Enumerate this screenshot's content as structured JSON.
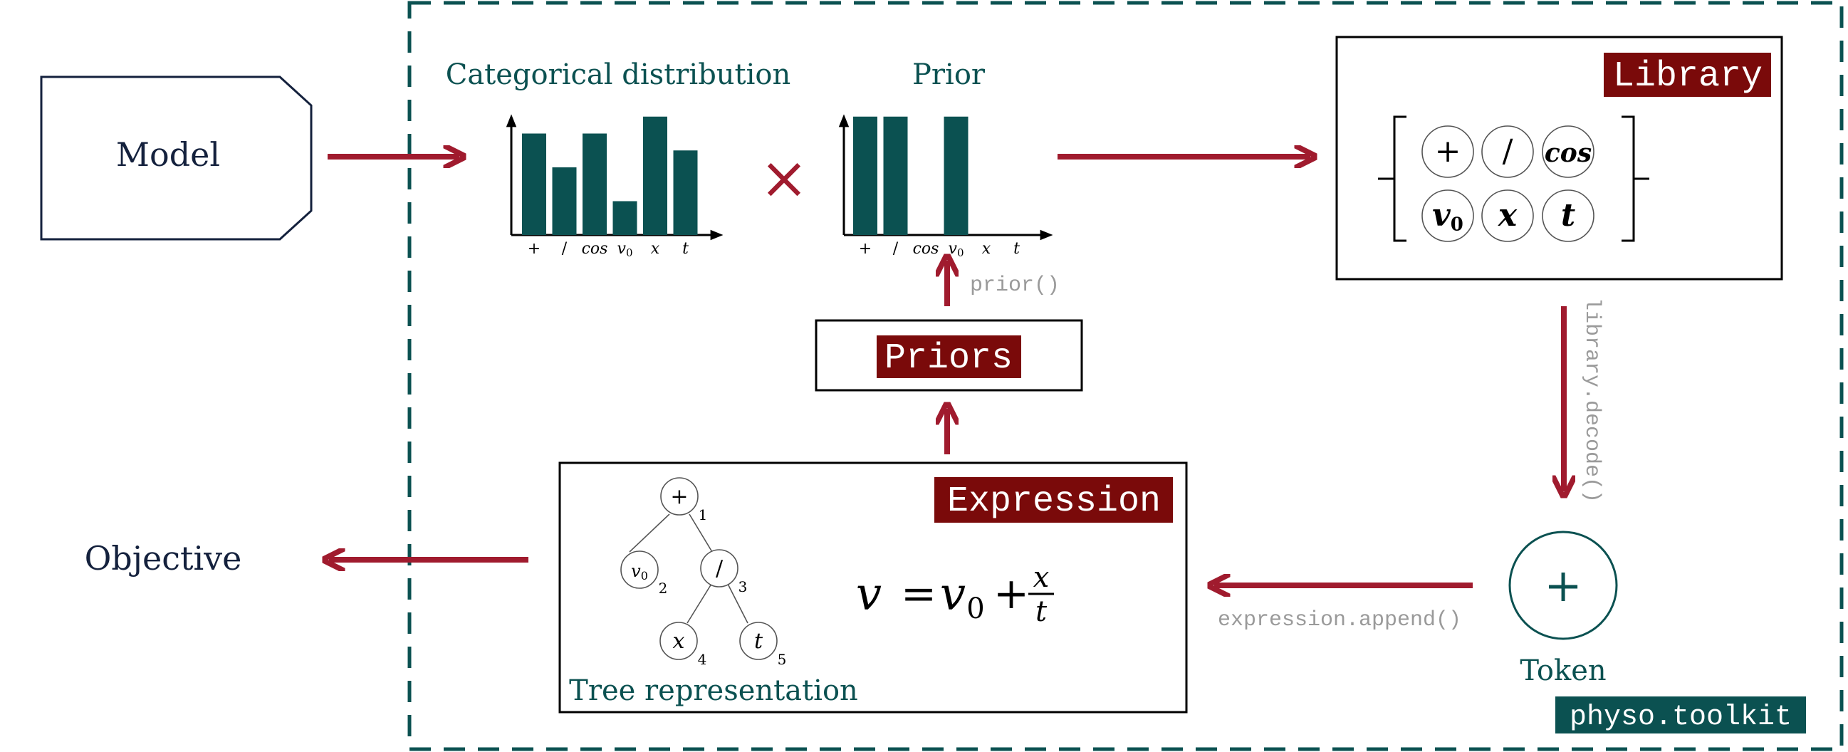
{
  "colors": {
    "teal": "#0b5151",
    "crimson": "#a01b2e",
    "label_bg": "#7a0a0a",
    "navy": "#14213d",
    "grey": "#9a9a9a"
  },
  "model": {
    "label": "Model"
  },
  "objective": {
    "label": "Objective"
  },
  "categorical": {
    "title": "Categorical distribution",
    "tick_labels": [
      "+",
      "/",
      "cos",
      "v0",
      "x",
      "t"
    ]
  },
  "prior": {
    "title": "Prior",
    "tick_labels": [
      "+",
      "/",
      "cos",
      "v0",
      "x",
      "t"
    ],
    "call": "prior()"
  },
  "times_symbol": "×",
  "library": {
    "tag": "Library",
    "tokens": [
      "+",
      "/",
      "cos",
      "v0",
      "x",
      "t"
    ],
    "call": "library.decode()"
  },
  "priors": {
    "tag": "Priors"
  },
  "expression": {
    "tag": "Expression",
    "call": "expression.append()",
    "tree_caption": "Tree representation",
    "tree_nodes": [
      {
        "symbol": "+",
        "index": "1"
      },
      {
        "symbol": "v0",
        "index": "2"
      },
      {
        "symbol": "/",
        "index": "3"
      },
      {
        "symbol": "x",
        "index": "4"
      },
      {
        "symbol": "t",
        "index": "5"
      }
    ],
    "equation": {
      "lhs": "v",
      "eq": "=",
      "v0_base": "v",
      "v0_sub": "0",
      "plus": "+",
      "num": "x",
      "den": "t"
    }
  },
  "token": {
    "symbol": "+",
    "label": "Token"
  },
  "toolkit": {
    "label": "physo.toolkit"
  },
  "chart_data": [
    {
      "type": "bar",
      "title": "Categorical distribution",
      "categories": [
        "+",
        "/",
        "cos",
        "v0",
        "x",
        "t"
      ],
      "values": [
        0.6,
        0.4,
        0.6,
        0.2,
        0.7,
        0.5
      ],
      "ylim": [
        0,
        0.8
      ]
    },
    {
      "type": "bar",
      "title": "Prior",
      "categories": [
        "+",
        "/",
        "cos",
        "v0",
        "x",
        "t"
      ],
      "values": [
        0.7,
        0.7,
        0,
        0.7,
        0,
        0
      ],
      "ylim": [
        0,
        0.8
      ]
    }
  ]
}
